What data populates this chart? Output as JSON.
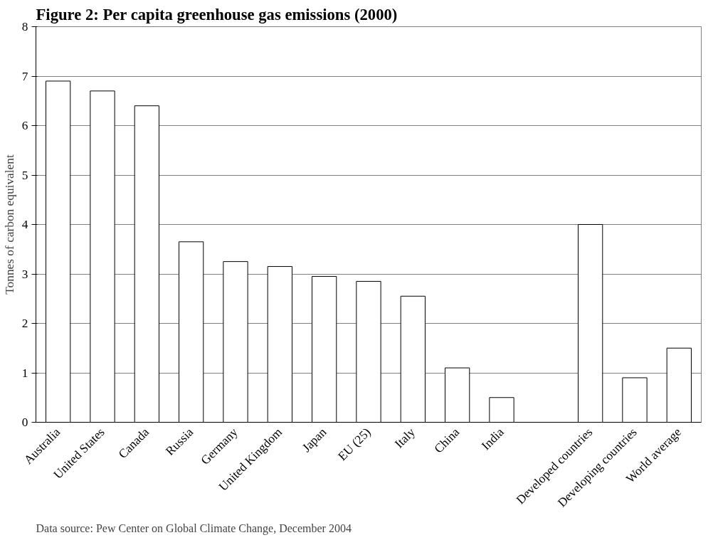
{
  "chart_data": {
    "type": "bar",
    "title": "Figure 2: Per capita greenhouse gas emissions (2000)",
    "ylabel": "Tonnes of carbon equivalent",
    "categories": [
      "Australia",
      "United States",
      "Canada",
      "Russia",
      "Germany",
      "United Kingdom",
      "Japan",
      "EU (25)",
      "Italy",
      "China",
      "India",
      null,
      "Developed countries",
      "Developing countries",
      "World average"
    ],
    "values": [
      6.9,
      6.7,
      6.4,
      3.65,
      3.25,
      3.15,
      2.95,
      2.85,
      2.55,
      1.1,
      0.5,
      null,
      4.0,
      0.9,
      1.5
    ],
    "color": "#ffffff",
    "ylim": [
      0,
      8
    ],
    "yticks": [
      0,
      1,
      2,
      3,
      4,
      5,
      6,
      7,
      8
    ],
    "grid": "y",
    "annotations": [
      "Data source: Pew Center on Global Climate Change, December 2004"
    ]
  }
}
